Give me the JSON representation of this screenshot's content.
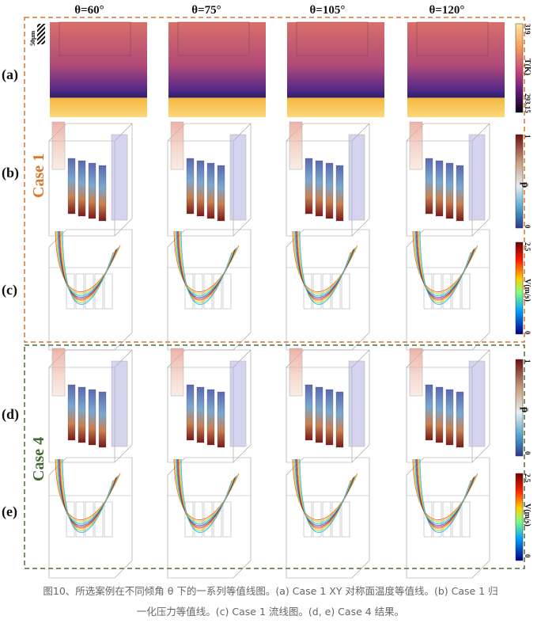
{
  "columns": [
    "θ=60°",
    "θ=75°",
    "θ=105°",
    "θ=120°"
  ],
  "row_labels": [
    "(a)",
    "(b)",
    "(c)",
    "(d)",
    "(e)"
  ],
  "groups": [
    {
      "label": "Case 1",
      "color": "#d9772b"
    },
    {
      "label": "Case 4",
      "color": "#3f6b2e"
    }
  ],
  "scale_bar_label": "50μm",
  "colorbars": {
    "temperature": {
      "max": "319",
      "min": "293.15",
      "label": "T(K)"
    },
    "pressure_b": {
      "max": "1",
      "min": "0",
      "label": "p̄"
    },
    "velocity_c": {
      "max": "2.5",
      "min": "0",
      "label": "V(m/s)"
    },
    "pressure_d": {
      "max": "1",
      "min": "0",
      "label": "p̄"
    },
    "velocity_e": {
      "max": "2.5",
      "min": "0",
      "label": "V(m/s)"
    }
  },
  "caption": {
    "line1": "图10、所选案例在不同倾角 θ 下的一系列等值线图。(a) Case 1 XY 对称面温度等值线。(b) Case 1 归",
    "line2": "一化压力等值线。(c) Case 1 流线图。(d, e) Case 4 结果。"
  },
  "colors": {
    "case1_border": "#d9772b",
    "case4_border": "#4b6b3a"
  }
}
